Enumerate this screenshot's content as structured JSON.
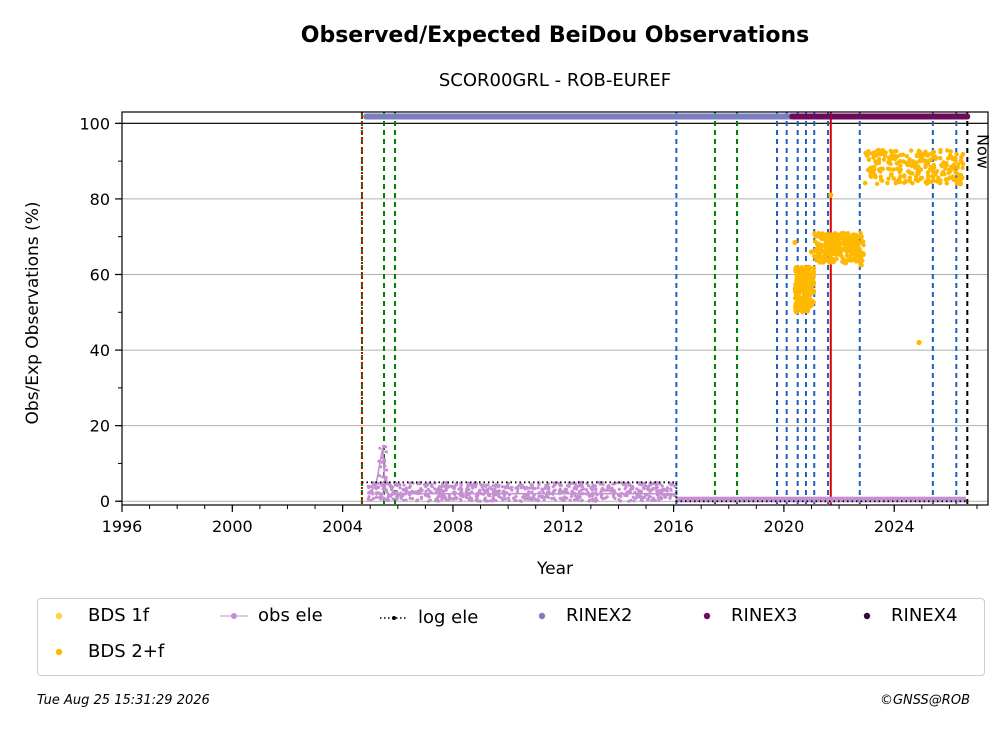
{
  "chart_data": {
    "type": "scatter",
    "title": "Observed/Expected BeiDou Observations",
    "subtitle": "SCOR00GRL - ROB-EUREF",
    "xlabel": "Year",
    "ylabel": "Obs/Exp Observations (%)",
    "xlim": [
      1996,
      2027.4
    ],
    "ylim": [
      -1,
      103
    ],
    "xticks": [
      1996,
      2000,
      2004,
      2008,
      2012,
      2016,
      2020,
      2024
    ],
    "yticks": [
      0,
      20,
      40,
      60,
      80,
      100
    ],
    "grid": "horizontal",
    "reference_line_y": 100,
    "now_label": "Now",
    "now_x": 2026.65,
    "vlines": [
      {
        "x": 2004.7,
        "color": "#008000",
        "style": "dashed"
      },
      {
        "x": 2004.7,
        "color": "#cc0000",
        "style": "dotted"
      },
      {
        "x": 2005.5,
        "color": "#008000",
        "style": "dashed"
      },
      {
        "x": 2005.9,
        "color": "#008000",
        "style": "dashed"
      },
      {
        "x": 2016.1,
        "color": "#1f5fbf",
        "style": "dashed"
      },
      {
        "x": 2017.5,
        "color": "#008000",
        "style": "dashed"
      },
      {
        "x": 2018.3,
        "color": "#008000",
        "style": "dashed"
      },
      {
        "x": 2019.75,
        "color": "#1f5fbf",
        "style": "dashed"
      },
      {
        "x": 2020.1,
        "color": "#1f5fbf",
        "style": "dashed"
      },
      {
        "x": 2020.5,
        "color": "#1f5fbf",
        "style": "dashed"
      },
      {
        "x": 2020.8,
        "color": "#1f5fbf",
        "style": "dashed"
      },
      {
        "x": 2021.1,
        "color": "#1f5fbf",
        "style": "dashed"
      },
      {
        "x": 2021.6,
        "color": "#1f5fbf",
        "style": "dashed"
      },
      {
        "x": 2021.7,
        "color": "#dd0000",
        "style": "solid"
      },
      {
        "x": 2022.75,
        "color": "#1f5fbf",
        "style": "dashed"
      },
      {
        "x": 2025.4,
        "color": "#1f5fbf",
        "style": "dashed"
      },
      {
        "x": 2026.25,
        "color": "#1f5fbf",
        "style": "dashed"
      },
      {
        "x": 2026.65,
        "color": "#000000",
        "style": "dashed"
      }
    ],
    "series": [
      {
        "name": "BDS 1f",
        "color": "#ffd040",
        "marker": "dot",
        "points": []
      },
      {
        "name": "BDS 2+f",
        "color": "#ffb800",
        "marker": "dot",
        "clusters": [
          {
            "x": [
              2020.4,
              2021.1
            ],
            "y": [
              50,
              62
            ]
          },
          {
            "x": [
              2021.1,
              2022.9
            ],
            "y": [
              63,
              71
            ]
          },
          {
            "x": [
              2022.9,
              2026.5
            ],
            "y": [
              84,
              93
            ]
          }
        ],
        "points": [
          [
            2020.4,
            68.5
          ],
          [
            2021.7,
            81
          ],
          [
            2022.8,
            62.5
          ],
          [
            2024.9,
            42
          ],
          [
            2021.0,
            66
          ],
          [
            2026.4,
            84
          ]
        ]
      },
      {
        "name": "obs ele",
        "color": "#c490d1",
        "marker": "line+dot",
        "x": [
          2004.9,
          2005.2,
          2005.35,
          2005.45,
          2005.55,
          2005.7,
          2006.0,
          2016.05,
          2016.1,
          2026.6
        ],
        "y": [
          2,
          4,
          10,
          14,
          3,
          1.5,
          2,
          2,
          0.5,
          0.5
        ]
      },
      {
        "name": "log ele",
        "color": "#000000",
        "marker": "dotted-line",
        "x": [
          2004.7,
          2016.1,
          2016.1,
          2026.65
        ],
        "y": [
          5,
          5,
          0,
          0
        ]
      },
      {
        "name": "RINEX2",
        "color": "#7b7fc0",
        "marker": "dot",
        "x_range": [
          2004.85,
          2021.7
        ],
        "y": 101.8
      },
      {
        "name": "RINEX3",
        "color": "#6e0a5e",
        "marker": "dot",
        "x_range": [
          2020.3,
          2026.65
        ],
        "y": 101.8
      },
      {
        "name": "RINEX4",
        "color": "#2a0e2e",
        "marker": "dot",
        "points": []
      }
    ]
  },
  "legend": {
    "items": [
      {
        "label": "BDS 1f",
        "color": "#ffd040",
        "kind": "dot"
      },
      {
        "label": "obs ele",
        "color": "#c490d1",
        "kind": "line-dot"
      },
      {
        "label": "log ele",
        "color": "#000000",
        "kind": "dotted"
      },
      {
        "label": "RINEX2",
        "color": "#7b7fc0",
        "kind": "dot"
      },
      {
        "label": "RINEX3",
        "color": "#6e0a5e",
        "kind": "dot"
      },
      {
        "label": "RINEX4",
        "color": "#2a0e2e",
        "kind": "dot"
      },
      {
        "label": "BDS 2+f",
        "color": "#ffb800",
        "kind": "dot"
      }
    ]
  },
  "footer": {
    "timestamp": "Tue Aug 25 15:31:29 2026",
    "credit": "©GNSS@ROB"
  }
}
